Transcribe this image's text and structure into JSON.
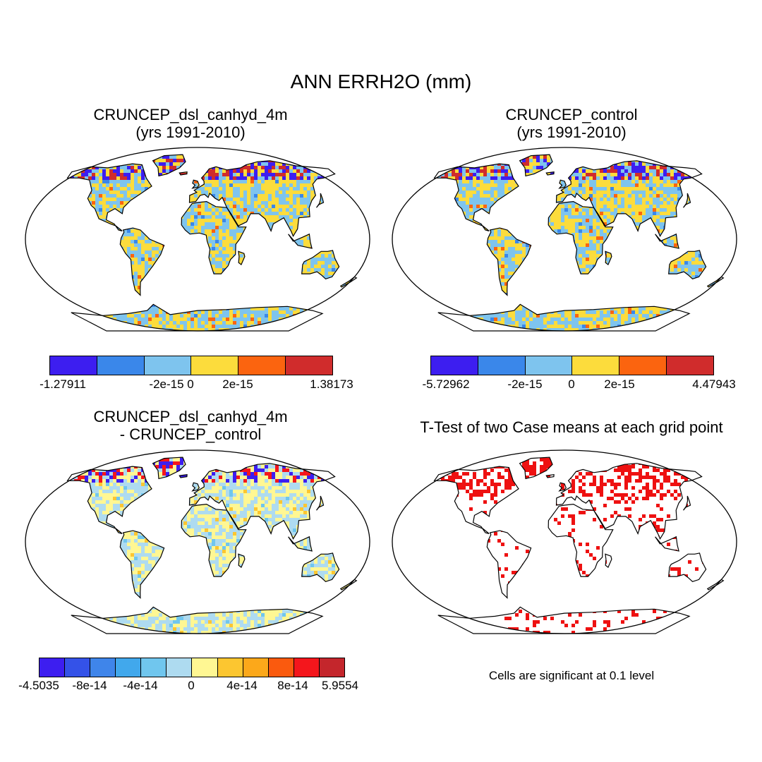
{
  "title": "ANN ERRH2O (mm)",
  "panels": [
    {
      "title_line1": "CRUNCEP_dsl_canhyd_4m",
      "title_line2": "(yrs 1991-2010)"
    },
    {
      "title_line1": "CRUNCEP_control",
      "title_line2": "(yrs 1991-2010)"
    },
    {
      "title_line1": "CRUNCEP_dsl_canhyd_4m",
      "title_line2": "- CRUNCEP_control"
    },
    {
      "title_line1": "T-Test of two Case means at each grid point"
    }
  ],
  "colorbars": [
    {
      "colors": [
        "#3d1ef0",
        "#3a87ea",
        "#7ec4ee",
        "#fcdc3c",
        "#fb640f",
        "#d02c2c"
      ],
      "labels": [
        "-1.27911",
        "-2e-15",
        "0",
        "2e-15",
        "1.38173"
      ]
    },
    {
      "colors": [
        "#3d1ef0",
        "#3a87ea",
        "#7ec4ee",
        "#fcdc3c",
        "#fb640f",
        "#d02c2c"
      ],
      "labels": [
        "-5.72962",
        "-2e-15",
        "0",
        "2e-15",
        "4.47943"
      ]
    },
    {
      "colors": [
        "#3d1ef0",
        "#3452e8",
        "#3f85ea",
        "#41a8ec",
        "#70c6ee",
        "#aedbf0",
        "#fff793",
        "#fcc630",
        "#fca81a",
        "#fa5a0e",
        "#f4161c",
        "#c4262c"
      ],
      "labels": [
        "-4.5035",
        "-8e-14",
        "-4e-14",
        "0",
        "4e-14",
        "8e-14",
        "5.9554"
      ]
    }
  ],
  "significance_note": "Cells are significant at 0.1 level",
  "chart_data": [
    {
      "type": "heatmap",
      "title": "CRUNCEP_dsl_canhyd_4m (yrs 1991-2010)",
      "variable": "ERRH2O",
      "units": "mm",
      "levels": [
        -1.27911,
        -2e-15,
        0,
        2e-15,
        1.38173
      ]
    },
    {
      "type": "heatmap",
      "title": "CRUNCEP_control (yrs 1991-2010)",
      "variable": "ERRH2O",
      "units": "mm",
      "levels": [
        -5.72962,
        -2e-15,
        0,
        2e-15,
        4.47943
      ]
    },
    {
      "type": "heatmap",
      "title": "CRUNCEP_dsl_canhyd_4m - CRUNCEP_control",
      "variable": "ERRH2O",
      "units": "mm",
      "levels": [
        -4.5035,
        -8e-14,
        -4e-14,
        0,
        4e-14,
        8e-14,
        5.9554
      ]
    },
    {
      "type": "heatmap",
      "title": "T-Test of two Case means at each grid point",
      "significance_level": 0.1
    }
  ]
}
